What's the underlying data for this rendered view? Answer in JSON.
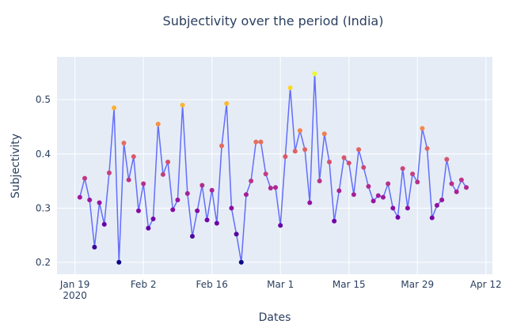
{
  "chart_data": {
    "type": "line",
    "title": "Subjectivity over the period (India)",
    "xlabel": "Dates",
    "ylabel": "Subjectivity",
    "x": [
      "2020-01-20",
      "2020-01-21",
      "2020-01-22",
      "2020-01-23",
      "2020-01-24",
      "2020-01-25",
      "2020-01-26",
      "2020-01-27",
      "2020-01-28",
      "2020-01-29",
      "2020-01-30",
      "2020-01-31",
      "2020-02-01",
      "2020-02-02",
      "2020-02-03",
      "2020-02-04",
      "2020-02-05",
      "2020-02-06",
      "2020-02-07",
      "2020-02-08",
      "2020-02-09",
      "2020-02-10",
      "2020-02-11",
      "2020-02-12",
      "2020-02-13",
      "2020-02-14",
      "2020-02-15",
      "2020-02-16",
      "2020-02-17",
      "2020-02-18",
      "2020-02-19",
      "2020-02-20",
      "2020-02-21",
      "2020-02-22",
      "2020-02-23",
      "2020-02-24",
      "2020-02-25",
      "2020-02-26",
      "2020-02-27",
      "2020-02-28",
      "2020-02-29",
      "2020-03-01",
      "2020-03-02",
      "2020-03-03",
      "2020-03-04",
      "2020-03-05",
      "2020-03-06",
      "2020-03-07",
      "2020-03-08",
      "2020-03-09",
      "2020-03-10",
      "2020-03-11",
      "2020-03-12",
      "2020-03-13",
      "2020-03-14",
      "2020-03-15",
      "2020-03-16",
      "2020-03-17",
      "2020-03-18",
      "2020-03-19",
      "2020-03-20",
      "2020-03-21",
      "2020-03-22",
      "2020-03-23",
      "2020-03-24",
      "2020-03-25",
      "2020-03-26",
      "2020-03-27",
      "2020-03-28",
      "2020-03-29",
      "2020-03-30",
      "2020-03-31",
      "2020-04-01",
      "2020-04-02",
      "2020-04-03",
      "2020-04-04",
      "2020-04-05",
      "2020-04-06",
      "2020-04-07",
      "2020-04-08"
    ],
    "series": [
      {
        "color": "#636efa",
        "values": [
          0.32,
          0.355,
          0.315,
          0.228,
          0.31,
          0.27,
          0.365,
          0.485,
          0.2,
          0.42,
          0.352,
          0.395,
          0.295,
          0.345,
          0.263,
          0.28,
          0.455,
          0.362,
          0.385,
          0.297,
          0.315,
          0.49,
          0.327,
          0.248,
          0.295,
          0.342,
          0.278,
          0.333,
          0.272,
          0.415,
          0.493,
          0.3,
          0.252,
          0.2,
          0.325,
          0.35,
          0.422,
          0.422,
          0.363,
          0.337,
          0.338,
          0.268,
          0.395,
          0.522,
          0.405,
          0.443,
          0.408,
          0.31,
          0.548,
          0.35,
          0.437,
          0.385,
          0.276,
          0.332,
          0.393,
          0.383,
          0.325,
          0.408,
          0.375,
          0.34,
          0.313,
          0.323,
          0.32,
          0.345,
          0.3,
          0.283,
          0.373,
          0.3,
          0.363,
          0.348,
          0.447,
          0.41,
          0.282,
          0.305,
          0.315,
          0.39,
          0.345,
          0.33,
          0.352,
          0.338
        ]
      }
    ],
    "marker_colorscale": [
      "#0d0887",
      "#46039f",
      "#7201a8",
      "#9c179e",
      "#bd3786",
      "#d8576b",
      "#ed7953",
      "#fb9f3a",
      "#fdca26",
      "#f0f921"
    ],
    "xlim": [
      "2020-01-15T08:00",
      "2020-04-13T08:00"
    ],
    "xticks": [
      {
        "value": "2020-01-19",
        "label": "Jan 19\n2020"
      },
      {
        "value": "2020-02-02",
        "label": "Feb 2"
      },
      {
        "value": "2020-02-16",
        "label": "Feb 16"
      },
      {
        "value": "2020-03-01",
        "label": "Mar 1"
      },
      {
        "value": "2020-03-15",
        "label": "Mar 15"
      },
      {
        "value": "2020-03-29",
        "label": "Mar 29"
      },
      {
        "value": "2020-04-12",
        "label": "Apr 12"
      }
    ],
    "ylim": [
      0.178,
      0.579
    ],
    "yticks": [
      0.2,
      0.3,
      0.4,
      0.5
    ],
    "grid": true
  }
}
